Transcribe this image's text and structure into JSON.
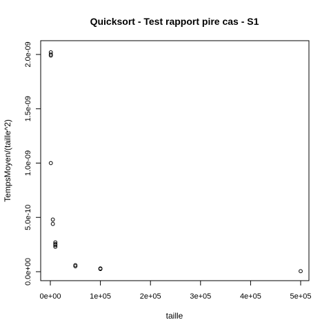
{
  "chart_data": {
    "type": "scatter",
    "title": "Quicksort - Test rapport pire cas - S1",
    "xlabel": "taille",
    "ylabel": "TempsMoyen/(taille^2)",
    "xlim": [
      0,
      500000
    ],
    "ylim": [
      0,
      2e-09
    ],
    "xticks": [
      {
        "value": 0,
        "label": "0e+00"
      },
      {
        "value": 100000,
        "label": "1e+05"
      },
      {
        "value": 200000,
        "label": "2e+05"
      },
      {
        "value": 300000,
        "label": "3e+05"
      },
      {
        "value": 400000,
        "label": "4e+05"
      },
      {
        "value": 500000,
        "label": "5e+05"
      }
    ],
    "yticks": [
      {
        "value": 0,
        "label": "0.0e+00"
      },
      {
        "value": 5e-10,
        "label": "5.0e-10"
      },
      {
        "value": 1e-09,
        "label": "1.0e-09"
      },
      {
        "value": 1.5e-09,
        "label": "1.5e-09"
      },
      {
        "value": 2e-09,
        "label": "2.0e-09"
      }
    ],
    "grid": false,
    "legend": "none",
    "marker": "open-circle",
    "points": [
      {
        "x": 1000,
        "y": 2.02e-09
      },
      {
        "x": 1000,
        "y": 1.99e-09
      },
      {
        "x": 1000,
        "y": 2e-09
      },
      {
        "x": 1000,
        "y": 1e-09
      },
      {
        "x": 5000,
        "y": 4.8e-10
      },
      {
        "x": 5000,
        "y": 4.4e-10
      },
      {
        "x": 10000,
        "y": 2.7e-10
      },
      {
        "x": 10000,
        "y": 2.55e-10
      },
      {
        "x": 10000,
        "y": 2.45e-10
      },
      {
        "x": 10000,
        "y": 2.3e-10
      },
      {
        "x": 50000,
        "y": 6e-11
      },
      {
        "x": 50000,
        "y": 5e-11
      },
      {
        "x": 100000,
        "y": 3e-11
      },
      {
        "x": 100000,
        "y": 2.5e-11
      },
      {
        "x": 500000,
        "y": 5e-12
      }
    ]
  }
}
